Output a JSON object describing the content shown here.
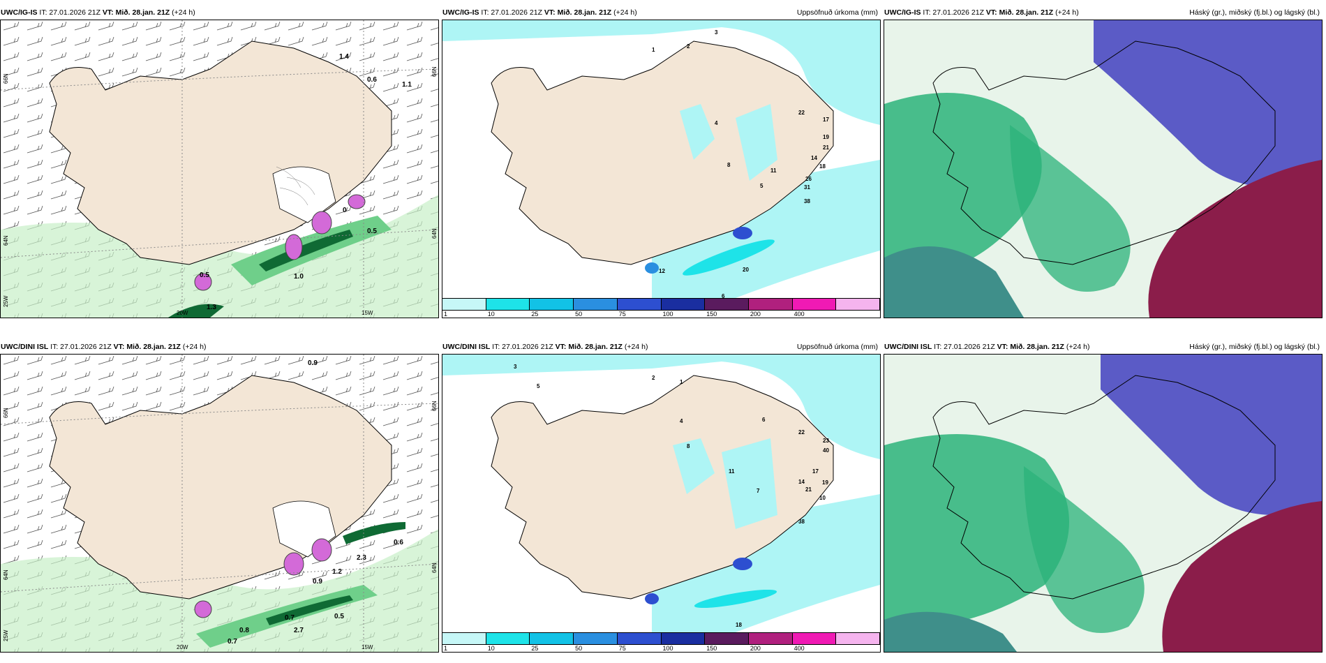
{
  "colors": {
    "land": "#f3e6d6",
    "sea": "#ffffff",
    "precip_light": "#aef5f5",
    "wind_green_light": "#c8f0c8",
    "wind_green_mid": "#6fcf8a",
    "wind_green_dark": "#0f6a34",
    "cloud_high_green": "#2bb37a",
    "cloud_mid_blue": "#5b5bc6",
    "cloud_low_red": "#8b1d4a"
  },
  "rows": [
    {
      "model": "UWC/IG-IS",
      "panels": {
        "wind": {
          "title_model": "UWC/IG-IS",
          "title_it": "IT: 27.01.2026 21Z",
          "title_vt": "VT: Mið. 28.jan. 21Z",
          "title_lead": "(+24 h)",
          "axis_labels": [
            "66N",
            "64N",
            "20W",
            "15W",
            "25W",
            "66N",
            "64N"
          ],
          "values": [
            "1.4",
            "0.6",
            "1.1",
            "0.5",
            "1.0",
            "1.3",
            "0.5",
            "0"
          ]
        },
        "precip": {
          "title_model": "UWC/IG-IS",
          "title_it": "IT: 27.01.2026 21Z",
          "title_vt": "VT: Mið. 28.jan. 21Z",
          "title_lead": "(+24 h)",
          "title_right": "Uppsöfnuð úrkoma (mm)",
          "values": [
            "1",
            "2",
            "3",
            "4",
            "22",
            "17",
            "19",
            "21",
            "14",
            "18",
            "26",
            "31",
            "38",
            "20",
            "8",
            "11",
            "5",
            "12",
            "6"
          ]
        },
        "clouds": {
          "title_model": "UWC/IG-IS",
          "title_it": "IT: 27.01.2026 21Z",
          "title_vt": "VT: Mið. 28.jan. 21Z",
          "title_lead": "(+24 h)",
          "title_right": "Háský (gr.), miðský (fj.bl.) og lágský (bl.)"
        }
      }
    },
    {
      "model": "UWC/DINI ISL",
      "panels": {
        "wind": {
          "title_model": "UWC/DINI ISL",
          "title_it": "IT: 27.01.2026 21Z",
          "title_vt": "VT: Mið. 28.jan. 21Z",
          "title_lead": "(+24 h)",
          "axis_labels": [
            "66N",
            "64N",
            "20W",
            "15W",
            "25W",
            "66N",
            "64N"
          ],
          "values": [
            "0.9",
            "0.6",
            "2.3",
            "0.9",
            "0.7",
            "0.5",
            "0.8",
            "0.7",
            "1.2",
            "2.7"
          ]
        },
        "precip": {
          "title_model": "UWC/DINI ISL",
          "title_it": "IT: 27.01.2026 21Z",
          "title_vt": "VT: Mið. 28.jan. 21Z",
          "title_lead": "(+24 h)",
          "title_right": "Uppsöfnuð úrkoma (mm)",
          "values": [
            "1",
            "2",
            "3",
            "4",
            "5",
            "6",
            "8",
            "11",
            "14",
            "17",
            "19",
            "21",
            "22",
            "23",
            "38",
            "40",
            "18",
            "7",
            "10"
          ]
        },
        "clouds": {
          "title_model": "UWC/DINI ISL",
          "title_it": "IT: 27.01.2026 21Z",
          "title_vt": "VT: Mið. 28.jan. 21Z",
          "title_lead": "(+24 h)",
          "title_right": "Háský (gr.), miðský (fj.bl.) og lágský (bl.)"
        }
      }
    }
  ],
  "colorbar": {
    "ticks": [
      "1",
      "10",
      "25",
      "50",
      "75",
      "100",
      "150",
      "200",
      "400"
    ],
    "colors": [
      "#c6f7f7",
      "#1ee3e8",
      "#12c2e6",
      "#2a8fe0",
      "#2d4fd0",
      "#1a2ea0",
      "#5a1b5e",
      "#b0207e",
      "#f01ab4",
      "#f5b4ee"
    ]
  }
}
